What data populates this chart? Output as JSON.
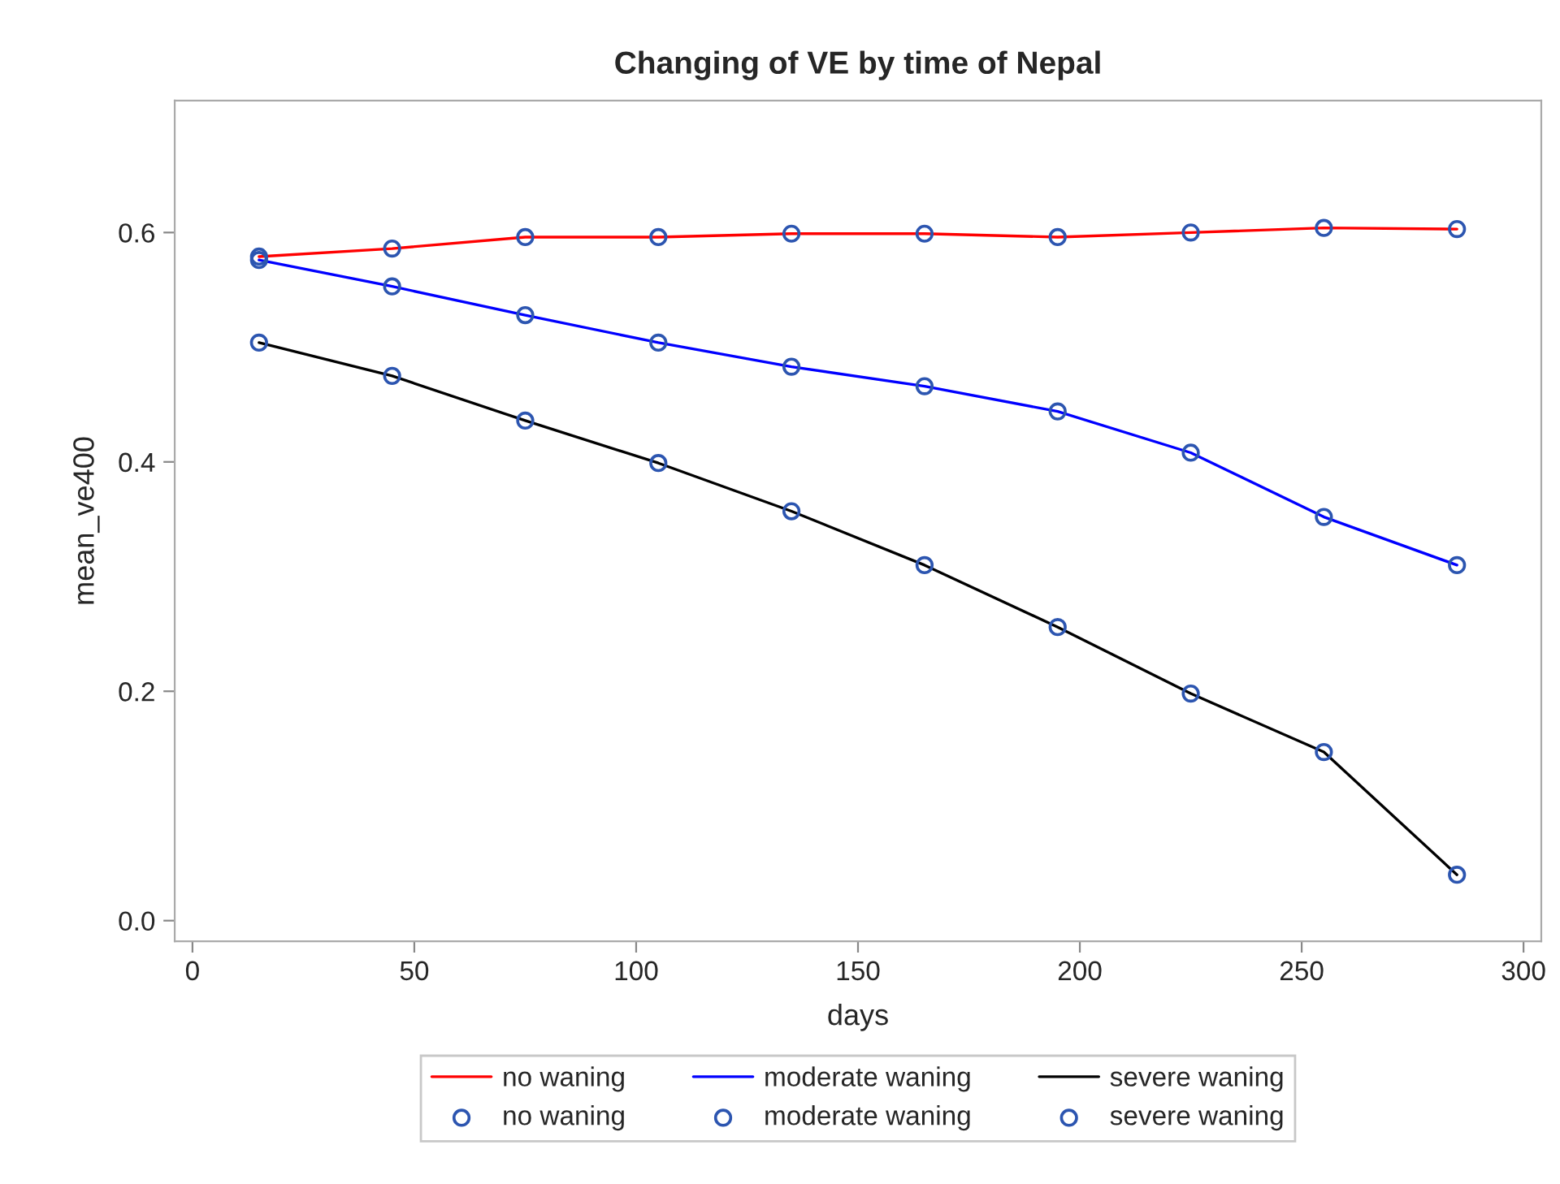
{
  "chart_data": {
    "type": "line",
    "title": "Changing of VE by time of Nepal",
    "xlabel": "days",
    "ylabel": "mean_ve400",
    "x": [
      15,
      45,
      75,
      105,
      135,
      165,
      195,
      225,
      255,
      285
    ],
    "series": [
      {
        "name": "no waning",
        "marker": "none",
        "color": "#ff0000",
        "values": [
          0.579,
          0.586,
          0.596,
          0.596,
          0.599,
          0.599,
          0.596,
          0.6,
          0.604,
          0.603
        ]
      },
      {
        "name": "moderate waning",
        "marker": "none",
        "color": "#0000ff",
        "values": [
          0.576,
          0.553,
          0.528,
          0.504,
          0.483,
          0.466,
          0.444,
          0.408,
          0.352,
          0.31
        ]
      },
      {
        "name": "severe waning",
        "marker": "none",
        "color": "#000000",
        "values": [
          0.504,
          0.475,
          0.436,
          0.399,
          0.357,
          0.31,
          0.256,
          0.198,
          0.147,
          0.04
        ]
      },
      {
        "name": "no waning",
        "type": "scatter",
        "marker": "circle",
        "color": "#2c55b0",
        "values": [
          0.579,
          0.586,
          0.596,
          0.596,
          0.599,
          0.599,
          0.596,
          0.6,
          0.604,
          0.603
        ]
      },
      {
        "name": "moderate waning",
        "type": "scatter",
        "marker": "circle",
        "color": "#2c55b0",
        "values": [
          0.576,
          0.553,
          0.528,
          0.504,
          0.483,
          0.466,
          0.444,
          0.408,
          0.352,
          0.31
        ]
      },
      {
        "name": "severe waning",
        "type": "scatter",
        "marker": "circle",
        "color": "#2c55b0",
        "values": [
          0.504,
          0.475,
          0.436,
          0.399,
          0.357,
          0.31,
          0.256,
          0.198,
          0.147,
          0.04
        ]
      }
    ],
    "xlim": [
      -4,
      304
    ],
    "xticks": [
      0,
      50,
      100,
      150,
      200,
      250,
      300
    ],
    "ylim": [
      -0.018,
      0.715
    ],
    "yticks": [
      {
        "value": 0,
        "label": "0.0"
      },
      {
        "value": 0.2,
        "label": "0.2"
      },
      {
        "value": 0.4,
        "label": "0.4"
      },
      {
        "value": 0.6,
        "label": "0.6"
      }
    ],
    "grid": false,
    "legend": "bottom"
  }
}
